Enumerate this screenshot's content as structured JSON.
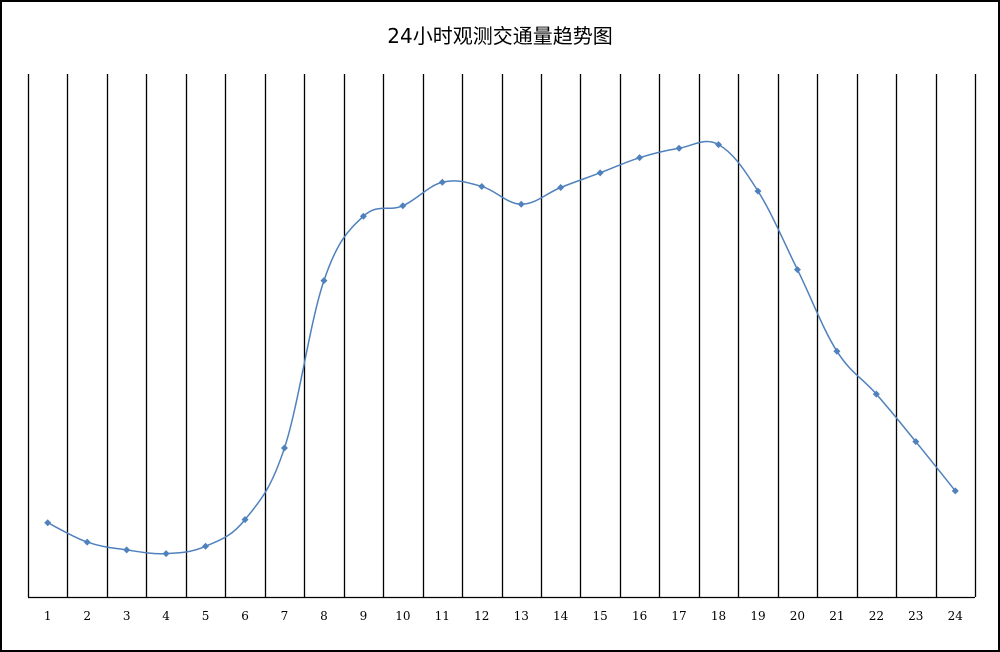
{
  "chart_data": {
    "type": "line",
    "title": "24小时观测交通量趋势图",
    "categories": [
      "1",
      "2",
      "3",
      "4",
      "5",
      "6",
      "7",
      "8",
      "9",
      "10",
      "11",
      "12",
      "13",
      "14",
      "15",
      "16",
      "17",
      "18",
      "19",
      "20",
      "21",
      "22",
      "23",
      "24"
    ],
    "series": [
      {
        "values": [
          14.2,
          10.5,
          9.0,
          8.3,
          9.7,
          14.8,
          28.5,
          60.5,
          72.8,
          74.8,
          79.3,
          78.5,
          75.1,
          78.3,
          81.1,
          84.0,
          85.8,
          86.5,
          77.6,
          62.6,
          47.0,
          38.8,
          29.7,
          20.3
        ],
        "color": "#4f81bd",
        "marker": "diamond"
      }
    ],
    "ylim": [
      0,
      100
    ],
    "grid": "vertical",
    "legend": "none"
  }
}
